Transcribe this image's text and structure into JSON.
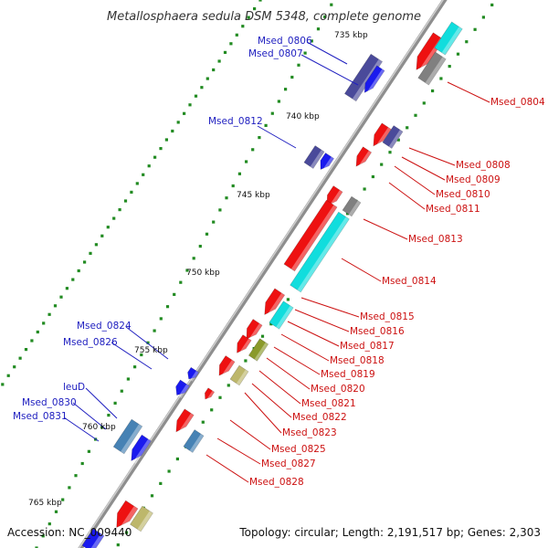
{
  "title": "Metallosphaera sedula DSM 5348, complete genome",
  "kbp_labels": [
    "735 kbp",
    "740 kbp",
    "745 kbp",
    "750 kbp",
    "755 kbp",
    "760 kbp",
    "765 kbp"
  ],
  "left_labels": [
    "Msed_0806",
    "Msed_0807",
    "Msed_0812",
    "Msed_0824",
    "Msed_0826",
    "leuD",
    "Msed_0830",
    "Msed_0831"
  ],
  "right_labels": [
    "Msed_0804",
    "Msed_0808",
    "Msed_0809",
    "Msed_0810",
    "Msed_0811",
    "Msed_0813",
    "Msed_0814",
    "Msed_0815",
    "Msed_0816",
    "Msed_0817",
    "Msed_0818",
    "Msed_0819",
    "Msed_0820",
    "Msed_0821",
    "Msed_0822",
    "Msed_0823",
    "Msed_0825",
    "Msed_0827",
    "Msed_0828"
  ],
  "footer": {
    "accession": "Accession: NC_009440",
    "topology": "Topology: circular; Length: 2,191,517 bp; Genes: 2,303"
  },
  "colors": {
    "backbone": "#9a9a9a",
    "gene_red": "#ee1111",
    "gene_blue": "#1a1aee",
    "gene_cyan": "#11dddd",
    "gene_navy": "#4a4a9a",
    "gene_steel": "#4682b4",
    "gene_olive": "#8a9a2a",
    "gene_khaki": "#bdb76b",
    "gene_gray": "#808080",
    "label_blue": "#2020c0",
    "label_red": "#cc1111",
    "tick_green": "#228b22"
  }
}
